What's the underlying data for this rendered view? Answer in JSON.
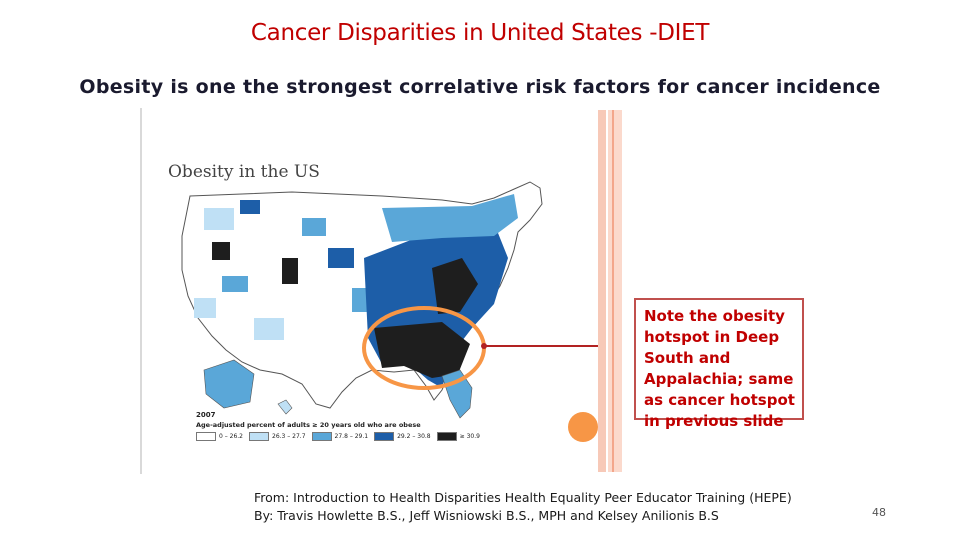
{
  "slide": {
    "title": "Cancer Disparities in United States -DIET",
    "subtitle": "Obesity is one the strongest correlative risk factors for cancer incidence",
    "page_number": "48"
  },
  "map": {
    "title": "Obesity in the US",
    "legend_year": "2007",
    "legend_caption": "Age-adjusted percent of adults ≥ 20 years old who are obese",
    "legend": [
      {
        "label": "0 – 26.2",
        "color": "#ffffff"
      },
      {
        "label": "26.3 – 27.7",
        "color": "#bfe0f5"
      },
      {
        "label": "27.8 – 29.1",
        "color": "#5aa7d8"
      },
      {
        "label": "29.2 – 30.8",
        "color": "#1d5ea8"
      },
      {
        "label": "≥ 30.9",
        "color": "#1e1e1e"
      }
    ]
  },
  "note": {
    "lines": [
      "Note the obesity",
      "hotspot in Deep",
      "South and",
      "Appalachia; same",
      "as cancer hotspot",
      "in previous slide"
    ]
  },
  "source": {
    "line1": "From: Introduction to Health Disparities Health Equality Peer Educator Training (HEPE)",
    "line2": "By: Travis Howlette B.S., Jeff Wisniowski B.S., MPH and Kelsey Anilionis B.S"
  },
  "colors": {
    "title": "#c00000",
    "accent_orange": "#f79646",
    "callout_line": "#b22222"
  }
}
